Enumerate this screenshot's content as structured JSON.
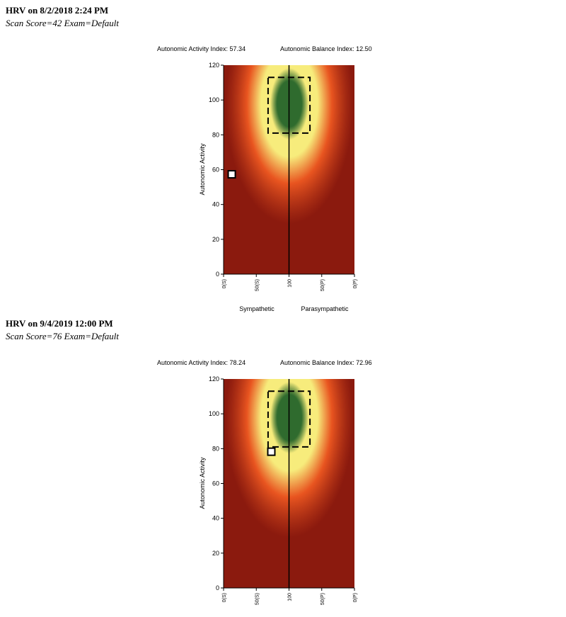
{
  "reports": [
    {
      "title": "HRV on 8/2/2018 2:24 PM",
      "subtitle": "Scan Score=42 Exam=Default",
      "chart_data": {
        "type": "heatmap",
        "header_left": "Autonomic Activity Index: 57.34",
        "header_right": "Autonomic Balance Index: 12.50",
        "ylabel": "Autonomic Activity",
        "xlabel_left": "Sympathetic",
        "xlabel_right": "Parasympathetic",
        "ylim": [
          0,
          120
        ],
        "yticks": [
          0,
          20,
          40,
          60,
          80,
          100,
          120
        ],
        "xlim": [
          0,
          200
        ],
        "xticks": [
          {
            "x": 0,
            "label": "0(S)"
          },
          {
            "x": 50,
            "label": "50(S)"
          },
          {
            "x": 100,
            "label": "100"
          },
          {
            "x": 150,
            "label": "50(P)"
          },
          {
            "x": 200,
            "label": "0(P)"
          }
        ],
        "target_zone": {
          "x": [
            68,
            132
          ],
          "y": [
            81,
            113
          ]
        },
        "point": {
          "x": 12.5,
          "y": 57.34
        },
        "colors": {
          "low": "#8b1a0e",
          "orange": "#e95520",
          "yellow": "#f7ec7c",
          "green": "#2f6b2e",
          "marker_fill": "#ffffff"
        }
      }
    },
    {
      "title": "HRV on 9/4/2019 12:00 PM",
      "subtitle": "Scan Score=76 Exam=Default",
      "chart_data": {
        "type": "heatmap",
        "header_left": "Autonomic Activity Index: 78.24",
        "header_right": "Autonomic Balance Index: 72.96",
        "ylabel": "Autonomic Activity",
        "xlabel_left": "",
        "xlabel_right": "",
        "ylim": [
          0,
          120
        ],
        "yticks": [
          0,
          20,
          40,
          60,
          80,
          100,
          120
        ],
        "xlim": [
          0,
          200
        ],
        "xticks": [
          {
            "x": 0,
            "label": "0(S)"
          },
          {
            "x": 50,
            "label": "50(S)"
          },
          {
            "x": 100,
            "label": "100"
          },
          {
            "x": 150,
            "label": "50(P)"
          },
          {
            "x": 200,
            "label": "0(P)"
          }
        ],
        "target_zone": {
          "x": [
            68,
            132
          ],
          "y": [
            81,
            113
          ]
        },
        "point": {
          "x": 72.96,
          "y": 78.24
        },
        "colors": {
          "low": "#8b1a0e",
          "orange": "#e95520",
          "yellow": "#f7ec7c",
          "green": "#2f6b2e",
          "marker_fill": "#ffffff"
        }
      }
    }
  ]
}
